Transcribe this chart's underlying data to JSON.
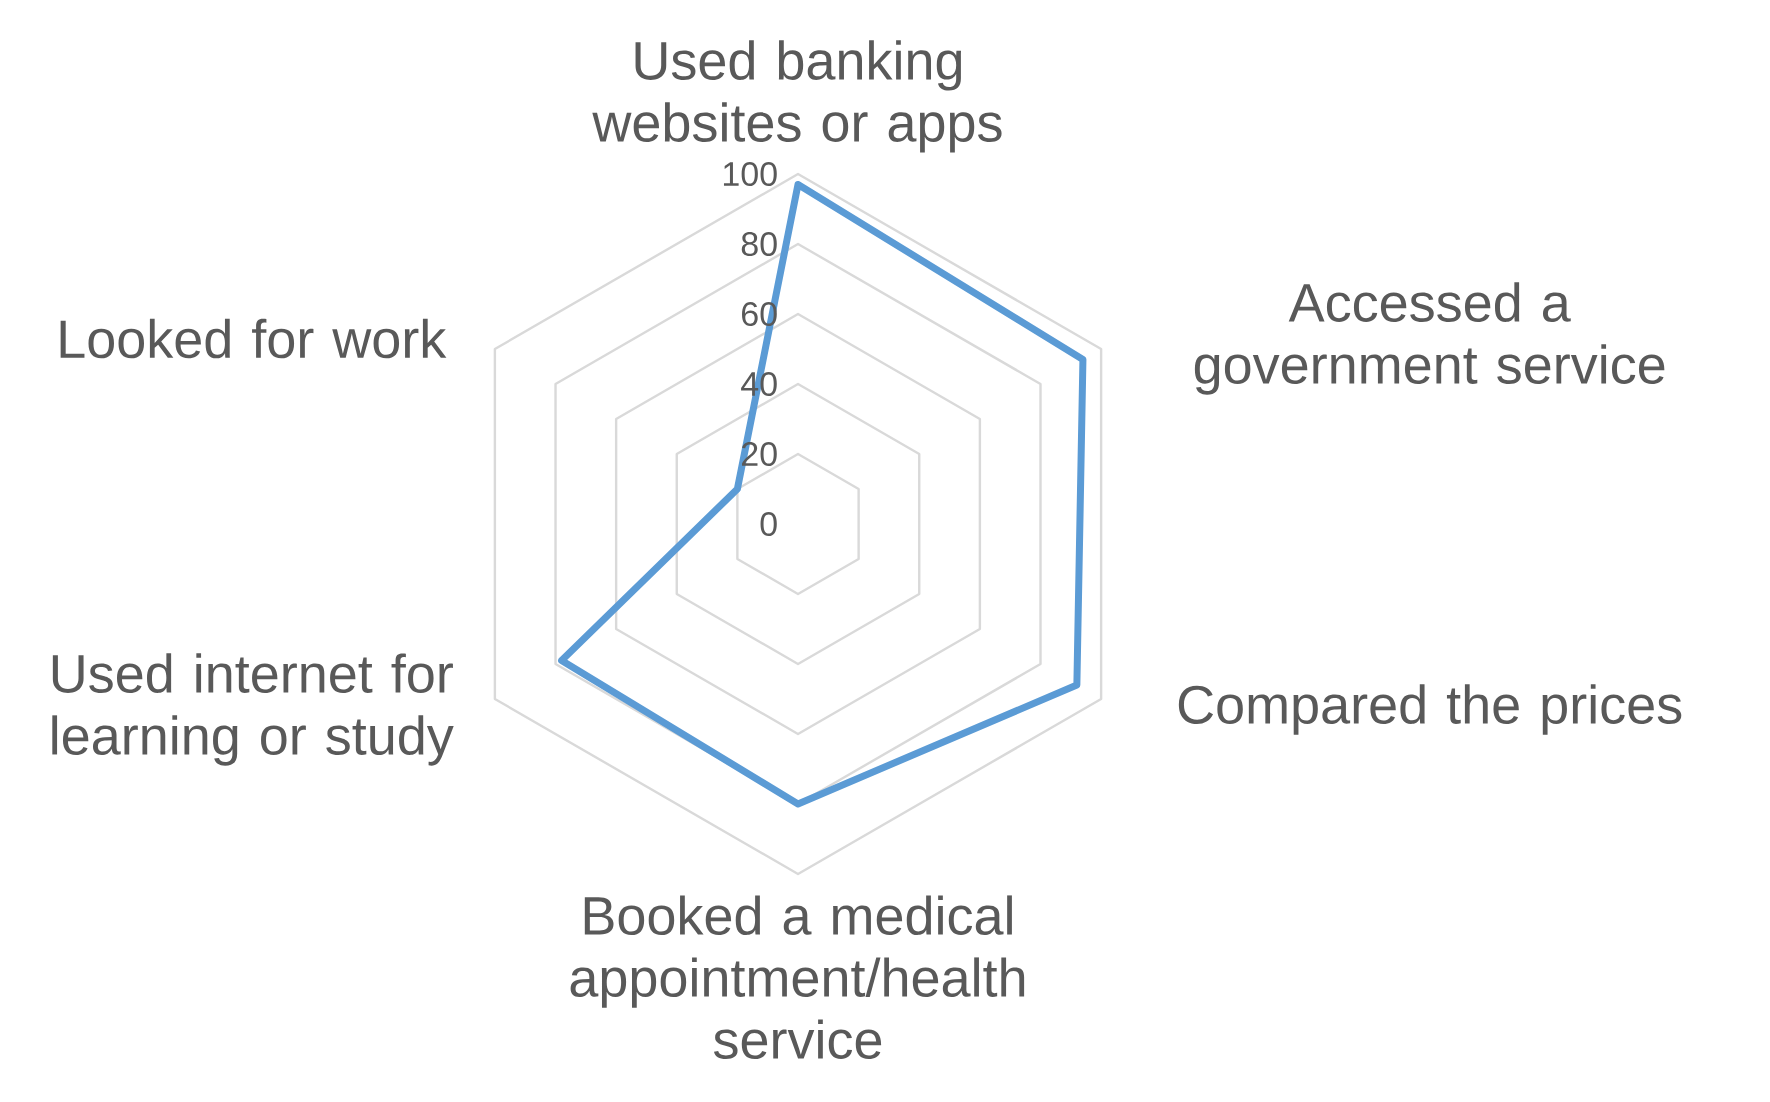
{
  "chart_data": {
    "type": "radar",
    "categories": [
      "Used banking websites or apps",
      "Accessed a government service",
      "Compared the prices",
      "Booked a medical appointment/health service",
      "Used internet for learning or study",
      "Looked for work"
    ],
    "series": [
      {
        "color": "#5b9bd5",
        "values": [
          97,
          94,
          92,
          80,
          78,
          20
        ]
      }
    ],
    "ylim": [
      0,
      100
    ],
    "yticks": [
      0,
      20,
      40,
      60,
      80,
      100
    ],
    "grid": true
  }
}
